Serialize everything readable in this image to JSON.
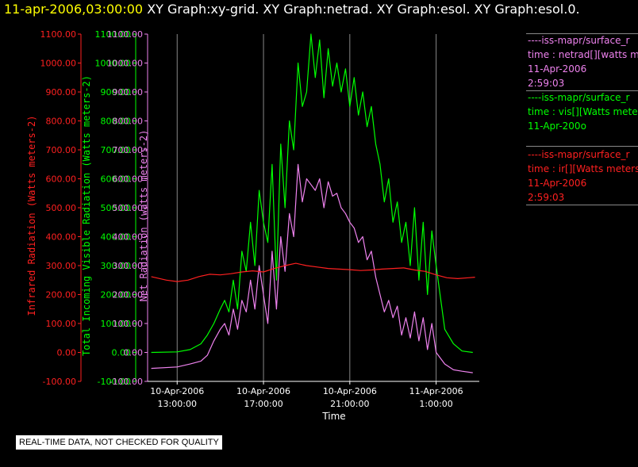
{
  "header": {
    "timestamp": "11-apr-2006,03:00:00",
    "graphs": "XY Graph:xy-grid.  XY Graph:netrad.  XY Graph:esol.  XY Graph:esol.0."
  },
  "colors": {
    "ir": "#ff2020",
    "vis": "#00ff00",
    "net": "#ee82ee",
    "axis": "#ffffff",
    "grid": "#888888",
    "timestamp": "#ffff00"
  },
  "legend": [
    {
      "line1": "----iss-mapr/surface_r",
      "line2": "time : netrad[][watts m",
      "line3": "11-Apr-2006",
      "line4": "2:59:03",
      "color": "#ee82ee"
    },
    {
      "line1": "----iss-mapr/surface_r",
      "line2": "time : vis[][Watts meter",
      "line3": "11-Apr-200o",
      "line4": "",
      "color": "#00ff00"
    },
    {
      "line1": "----iss-mapr/surface_r",
      "line2": "time : ir[][Watts meters",
      "line3": "11-Apr-2006",
      "line4": "2:59:03",
      "color": "#ff2020"
    }
  ],
  "footer": "REAL-TIME DATA, NOT CHECKED FOR QUALITY",
  "chart_data": {
    "type": "line",
    "xlabel": "Time",
    "x_ticks": [
      {
        "hours": 0,
        "label1": "10-Apr-2006",
        "label2": "13:00:00"
      },
      {
        "hours": 4,
        "label1": "10-Apr-2006",
        "label2": "17:00:00"
      },
      {
        "hours": 8,
        "label1": "10-Apr-2006",
        "label2": "21:00:00"
      },
      {
        "hours": 12,
        "label1": "11-Apr-2006",
        "label2": "1:00:00"
      }
    ],
    "x_range_hours": [
      -1.37,
      14.0
    ],
    "ylim": [
      -100,
      1100
    ],
    "y_ticks": [
      "-100.00",
      "0.00",
      "100.00",
      "200.00",
      "300.00",
      "400.00",
      "500.00",
      "600.00",
      "700.00",
      "800.00",
      "900.00",
      "1000.00",
      "1100.00"
    ],
    "grid": true,
    "axes": [
      {
        "label": "Infrared Radiation (Watts meters-2)",
        "color": "#ff2020"
      },
      {
        "label": "Total Incoming Visible Radiation (Watts meters-2)",
        "color": "#00ff00"
      },
      {
        "label": "Net Radiation (watts meters-2)",
        "color": "#ee82ee"
      }
    ],
    "series": [
      {
        "color": "#00ff00",
        "x": [
          -1.2,
          0,
          0.6,
          1.1,
          1.4,
          1.7,
          2.0,
          2.2,
          2.4,
          2.6,
          2.8,
          3.0,
          3.2,
          3.4,
          3.6,
          3.8,
          4.0,
          4.2,
          4.4,
          4.6,
          4.8,
          5.0,
          5.2,
          5.4,
          5.6,
          5.8,
          6.0,
          6.2,
          6.4,
          6.6,
          6.8,
          7.0,
          7.2,
          7.4,
          7.6,
          7.8,
          8.0,
          8.2,
          8.4,
          8.6,
          8.8,
          9.0,
          9.2,
          9.4,
          9.6,
          9.8,
          10.0,
          10.2,
          10.4,
          10.6,
          10.8,
          11.0,
          11.2,
          11.4,
          11.6,
          11.8,
          12.0,
          12.4,
          12.8,
          13.2,
          13.7
        ],
        "values": [
          0,
          2,
          10,
          30,
          60,
          100,
          150,
          180,
          140,
          250,
          150,
          350,
          280,
          450,
          300,
          560,
          450,
          380,
          650,
          250,
          720,
          500,
          800,
          700,
          1000,
          850,
          900,
          1100,
          950,
          1080,
          880,
          1050,
          920,
          1000,
          900,
          980,
          850,
          950,
          820,
          900,
          780,
          850,
          720,
          650,
          520,
          600,
          450,
          520,
          380,
          450,
          300,
          500,
          250,
          450,
          200,
          420,
          300,
          80,
          30,
          5,
          0
        ]
      },
      {
        "color": "#ee82ee",
        "x": [
          -1.2,
          0,
          0.6,
          1.1,
          1.4,
          1.7,
          2.0,
          2.2,
          2.4,
          2.6,
          2.8,
          3.0,
          3.2,
          3.4,
          3.6,
          3.8,
          4.0,
          4.2,
          4.4,
          4.6,
          4.8,
          5.0,
          5.2,
          5.4,
          5.6,
          5.8,
          6.0,
          6.2,
          6.4,
          6.6,
          6.8,
          7.0,
          7.2,
          7.4,
          7.6,
          7.8,
          8.0,
          8.2,
          8.4,
          8.6,
          8.8,
          9.0,
          9.2,
          9.4,
          9.6,
          9.8,
          10.0,
          10.2,
          10.4,
          10.6,
          10.8,
          11.0,
          11.2,
          11.4,
          11.6,
          11.8,
          12.0,
          12.4,
          12.8,
          13.2,
          13.7
        ],
        "values": [
          -55,
          -50,
          -40,
          -30,
          -10,
          40,
          80,
          100,
          60,
          150,
          80,
          180,
          140,
          250,
          150,
          300,
          200,
          100,
          350,
          150,
          400,
          280,
          480,
          400,
          650,
          520,
          600,
          580,
          560,
          600,
          500,
          590,
          540,
          550,
          500,
          480,
          450,
          430,
          380,
          400,
          320,
          350,
          260,
          200,
          140,
          180,
          120,
          160,
          60,
          120,
          50,
          140,
          40,
          120,
          10,
          100,
          0,
          -40,
          -60,
          -65,
          -70
        ]
      },
      {
        "color": "#ff2020",
        "x": [
          -1.2,
          -0.5,
          0,
          0.5,
          1.0,
          1.5,
          2.0,
          2.5,
          3.0,
          3.5,
          4.0,
          4.5,
          5.0,
          5.5,
          6.0,
          6.5,
          7.0,
          7.5,
          8.0,
          8.5,
          9.0,
          9.5,
          10.0,
          10.5,
          11.0,
          11.5,
          12.0,
          12.5,
          13.0,
          13.5,
          13.8
        ],
        "values": [
          262,
          250,
          245,
          250,
          262,
          270,
          268,
          272,
          278,
          282,
          278,
          290,
          300,
          308,
          300,
          295,
          290,
          288,
          286,
          283,
          285,
          288,
          290,
          292,
          285,
          280,
          268,
          258,
          255,
          258,
          260
        ]
      }
    ]
  }
}
